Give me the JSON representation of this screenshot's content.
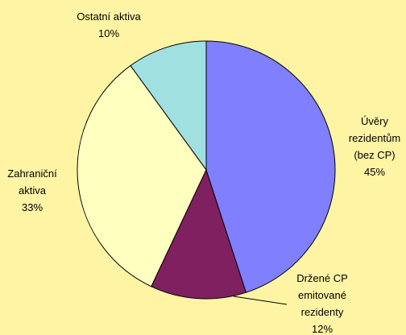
{
  "chart_data": {
    "type": "pie",
    "categories": [
      "Úvěry rezidentům (bez CP)",
      "Držené CP emitované rezidenty",
      "Zahraniční aktiva",
      "Ostatní aktiva"
    ],
    "values": [
      45,
      12,
      33,
      10
    ],
    "value_labels": [
      "45%",
      "12%",
      "33%",
      "10%"
    ],
    "colors": [
      "#8080ff",
      "#802060",
      "#ffffc0",
      "#a0e0e0"
    ]
  }
}
